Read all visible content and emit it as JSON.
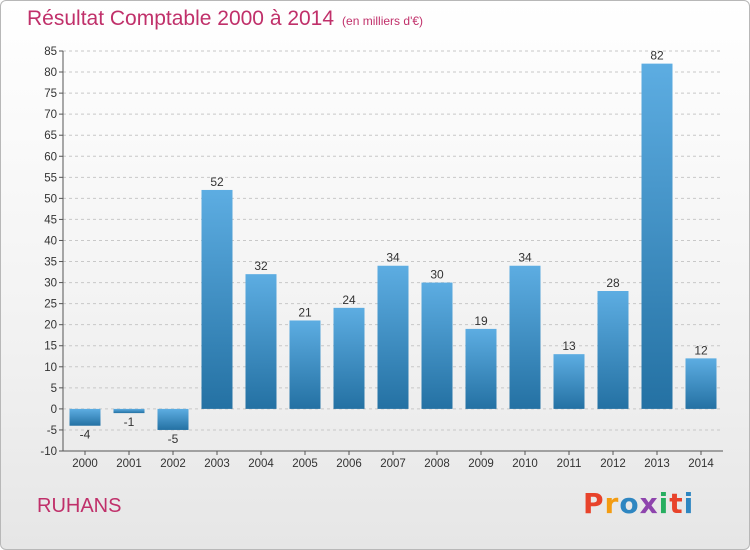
{
  "title": "Résultat Comptable 2000 à 2014",
  "subtitle": "(en milliers d'€)",
  "place_name": "RUHANS",
  "logo_text": "Proxiti",
  "logo_colors": [
    "#e8432b",
    "#f39c12",
    "#2e86c1",
    "#8e44ad",
    "#27ae60",
    "#e8432b",
    "#2e86c1"
  ],
  "colors": {
    "title": "#c0306a",
    "bar_top": "#5dade2",
    "bar_bottom": "#2471a3",
    "grid": "#c8c8c8"
  },
  "chart_data": {
    "type": "bar",
    "title": "Résultat Comptable 2000 à 2014",
    "subtitle": "(en milliers d'€)",
    "categories": [
      "2000",
      "2001",
      "2002",
      "2003",
      "2004",
      "2005",
      "2006",
      "2007",
      "2008",
      "2009",
      "2010",
      "2011",
      "2012",
      "2013",
      "2014"
    ],
    "values": [
      -4,
      -1,
      -5,
      52,
      32,
      21,
      24,
      34,
      30,
      19,
      34,
      13,
      28,
      82,
      12
    ],
    "ylim": [
      -10,
      85
    ],
    "ytick_step": 5,
    "grid": "horizontal dashed"
  }
}
